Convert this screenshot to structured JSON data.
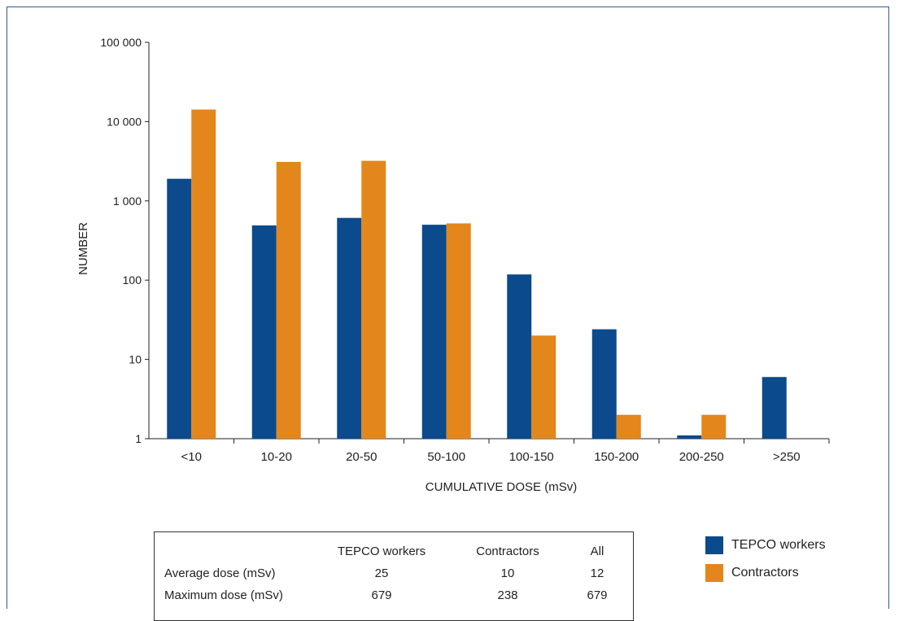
{
  "chart_data": {
    "type": "bar",
    "xlabel": "CUMULATIVE DOSE (mSv)",
    "ylabel": "NUMBER",
    "yscale": "log",
    "ylim": [
      1,
      100000
    ],
    "yticks": [
      {
        "value": 1,
        "label": "1"
      },
      {
        "value": 10,
        "label": "10"
      },
      {
        "value": 100,
        "label": "100"
      },
      {
        "value": 1000,
        "label": "1 000"
      },
      {
        "value": 10000,
        "label": "10 000"
      },
      {
        "value": 100000,
        "label": "100 000"
      }
    ],
    "categories": [
      "<10",
      "10-20",
      "20-50",
      "50-100",
      "100-150",
      "150-200",
      "200-250",
      ">250"
    ],
    "series": [
      {
        "name": "TEPCO workers",
        "color": "#0b4a8c",
        "values": [
          1900,
          490,
          610,
          500,
          118,
          24,
          1.1,
          6
        ]
      },
      {
        "name": "Contractors",
        "color": "#e3861b",
        "values": [
          14200,
          3100,
          3200,
          520,
          20,
          2,
          2,
          null
        ]
      }
    ],
    "legend_position": "bottom-right",
    "grid": false
  },
  "summary_table": {
    "headers": [
      "TEPCO workers",
      "Contractors",
      "All"
    ],
    "rows": [
      {
        "label": "Average dose (mSv)",
        "values": [
          "25",
          "10",
          "12"
        ]
      },
      {
        "label": "Maximum dose (mSv)",
        "values": [
          "679",
          "238",
          "679"
        ]
      }
    ]
  },
  "legend": [
    {
      "label": "TEPCO workers",
      "color": "#0b4a8c"
    },
    {
      "label": "Contractors",
      "color": "#e3861b"
    }
  ]
}
